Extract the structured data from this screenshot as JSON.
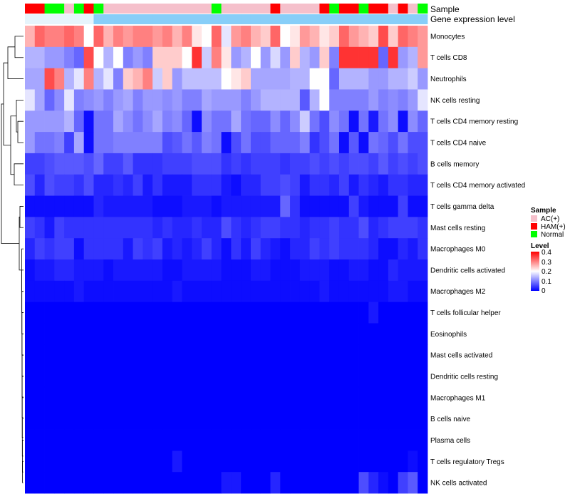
{
  "chart_data": {
    "type": "heatmap",
    "annotation_tracks": [
      {
        "label": "Sample",
        "values": [
          "HAM(+)",
          "HAM(+)",
          "Normal",
          "Normal",
          "AC(+)",
          "Normal",
          "HAM(+)",
          "Normal",
          "AC(+)",
          "AC(+)",
          "AC(+)",
          "AC(+)",
          "AC(+)",
          "AC(+)",
          "AC(+)",
          "AC(+)",
          "AC(+)",
          "AC(+)",
          "AC(+)",
          "Normal",
          "AC(+)",
          "AC(+)",
          "AC(+)",
          "AC(+)",
          "AC(+)",
          "HAM(+)",
          "AC(+)",
          "AC(+)",
          "AC(+)",
          "AC(+)",
          "HAM(+)",
          "Normal",
          "HAM(+)",
          "HAM(+)",
          "Normal",
          "HAM(+)",
          "HAM(+)",
          "AC(+)",
          "HAM(+)",
          "AC(+)",
          "Normal"
        ]
      },
      {
        "label": "Gene expression level",
        "values": [
          "low",
          "low",
          "low",
          "low",
          "low",
          "low",
          "low",
          "high",
          "high",
          "high",
          "high",
          "high",
          "high",
          "high",
          "high",
          "high",
          "high",
          "high",
          "high",
          "high",
          "high",
          "high",
          "high",
          "high",
          "high",
          "high",
          "high",
          "high",
          "high",
          "high",
          "high",
          "high",
          "high",
          "high",
          "high",
          "high",
          "high",
          "high",
          "high",
          "high",
          "high"
        ]
      }
    ],
    "rows": [
      "Monocytes",
      "T cells CD8",
      "Neutrophils",
      "NK cells resting",
      "T cells CD4 memory resting",
      "T cells CD4 naive",
      "B cells memory",
      "T cells CD4 memory activated",
      "T cells gamma delta",
      "Mast cells resting",
      "Macrophages M0",
      "Dendritic cells activated",
      "Macrophages M2",
      "T cells follicular helper",
      "Eosinophils",
      "Mast cells activated",
      "Dendritic cells resting",
      "Macrophages M1",
      "B cells naive",
      "Plasma cells",
      "T cells regulatory  Tregs",
      "NK cells activated"
    ],
    "values": [
      [
        0.26,
        0.32,
        0.3,
        0.3,
        0.32,
        0.3,
        0.2,
        0.32,
        0.26,
        0.3,
        0.28,
        0.3,
        0.3,
        0.28,
        0.3,
        0.26,
        0.3,
        0.22,
        0.2,
        0.32,
        0.18,
        0.28,
        0.3,
        0.26,
        0.24,
        0.32,
        0.2,
        0.22,
        0.28,
        0.26,
        0.22,
        0.24,
        0.32,
        0.28,
        0.26,
        0.24,
        0.34,
        0.24,
        0.32,
        0.3,
        0.28
      ],
      [
        0.14,
        0.14,
        0.12,
        0.12,
        0.1,
        0.08,
        0.34,
        0.2,
        0.14,
        0.2,
        0.1,
        0.12,
        0.1,
        0.24,
        0.24,
        0.24,
        0.2,
        0.36,
        0.16,
        0.3,
        0.22,
        0.12,
        0.14,
        0.2,
        0.12,
        0.17,
        0.12,
        0.24,
        0.14,
        0.12,
        0.24,
        0.1,
        0.36,
        0.36,
        0.36,
        0.36,
        0.08,
        0.36,
        0.12,
        0.14,
        0.28
      ],
      [
        0.13,
        0.13,
        0.34,
        0.3,
        0.14,
        0.18,
        0.3,
        0.14,
        0.18,
        0.1,
        0.24,
        0.26,
        0.3,
        0.16,
        0.24,
        0.12,
        0.15,
        0.15,
        0.15,
        0.15,
        0.2,
        0.22,
        0.24,
        0.13,
        0.13,
        0.13,
        0.13,
        0.14,
        0.14,
        0.2,
        0.2,
        0.08,
        0.14,
        0.14,
        0.14,
        0.12,
        0.12,
        0.14,
        0.14,
        0.16,
        0.12
      ],
      [
        0.18,
        0.13,
        0.08,
        0.11,
        0.18,
        0.1,
        0.11,
        0.12,
        0.1,
        0.12,
        0.13,
        0.1,
        0.12,
        0.12,
        0.11,
        0.12,
        0.1,
        0.1,
        0.13,
        0.12,
        0.12,
        0.12,
        0.1,
        0.12,
        0.14,
        0.14,
        0.14,
        0.14,
        0.07,
        0.14,
        0.2,
        0.1,
        0.1,
        0.1,
        0.1,
        0.12,
        0.1,
        0.11,
        0.1,
        0.12,
        0.18
      ],
      [
        0.12,
        0.12,
        0.12,
        0.12,
        0.14,
        0.08,
        0.01,
        0.09,
        0.09,
        0.13,
        0.11,
        0.09,
        0.11,
        0.13,
        0.1,
        0.11,
        0.08,
        0.01,
        0.11,
        0.09,
        0.09,
        0.13,
        0.09,
        0.08,
        0.08,
        0.11,
        0.08,
        0.11,
        0.16,
        0.09,
        0.06,
        0.11,
        0.09,
        0.01,
        0.09,
        0.02,
        0.09,
        0.11,
        0.01,
        0.11,
        0.08
      ],
      [
        0.12,
        0.09,
        0.09,
        0.1,
        0.05,
        0.13,
        0.01,
        0.09,
        0.09,
        0.1,
        0.1,
        0.1,
        0.1,
        0.1,
        0.06,
        0.07,
        0.09,
        0.07,
        0.1,
        0.09,
        0.01,
        0.06,
        0.09,
        0.06,
        0.06,
        0.08,
        0.08,
        0.08,
        0.1,
        0.04,
        0.06,
        0.09,
        0.01,
        0.07,
        0.01,
        0.09,
        0.08,
        0.06,
        0.09,
        0.06,
        0.06
      ],
      [
        0.05,
        0.05,
        0.06,
        0.07,
        0.07,
        0.07,
        0.06,
        0.08,
        0.05,
        0.05,
        0.07,
        0.04,
        0.04,
        0.04,
        0.05,
        0.05,
        0.05,
        0.06,
        0.06,
        0.06,
        0.04,
        0.05,
        0.04,
        0.05,
        0.05,
        0.05,
        0.04,
        0.05,
        0.05,
        0.06,
        0.05,
        0.06,
        0.05,
        0.06,
        0.06,
        0.05,
        0.07,
        0.05,
        0.06,
        0.05,
        0.06
      ],
      [
        0.06,
        0.03,
        0.06,
        0.05,
        0.05,
        0.04,
        0.06,
        0.03,
        0.03,
        0.04,
        0.03,
        0.05,
        0.02,
        0.04,
        0.02,
        0.02,
        0.02,
        0.04,
        0.04,
        0.04,
        0.02,
        0.01,
        0.03,
        0.03,
        0.05,
        0.05,
        0.06,
        0.05,
        0.02,
        0.04,
        0.04,
        0.03,
        0.05,
        0.02,
        0.04,
        0.03,
        0.02,
        0.04,
        0.04,
        0.03,
        0.03
      ],
      [
        0.01,
        0.01,
        0.01,
        0.01,
        0.01,
        0.01,
        0.01,
        0.03,
        0.02,
        0.02,
        0.02,
        0.02,
        0.02,
        0.01,
        0.01,
        0.01,
        0.02,
        0.02,
        0.02,
        0.01,
        0.02,
        0.02,
        0.02,
        0.02,
        0.02,
        0.02,
        0.08,
        0.04,
        0.01,
        0.01,
        0.01,
        0.01,
        0.01,
        0.05,
        0.02,
        0.01,
        0.01,
        0.01,
        0.05,
        0.01,
        0.01
      ],
      [
        0.05,
        0.04,
        0.02,
        0.05,
        0.04,
        0.04,
        0.04,
        0.04,
        0.04,
        0.04,
        0.04,
        0.04,
        0.04,
        0.03,
        0.04,
        0.03,
        0.03,
        0.04,
        0.03,
        0.03,
        0.06,
        0.04,
        0.03,
        0.04,
        0.05,
        0.05,
        0.04,
        0.04,
        0.03,
        0.04,
        0.04,
        0.05,
        0.04,
        0.04,
        0.06,
        0.03,
        0.04,
        0.05,
        0.05,
        0.05,
        0.04
      ],
      [
        0.03,
        0.05,
        0.04,
        0.05,
        0.05,
        0.01,
        0.04,
        0.04,
        0.04,
        0.04,
        0.02,
        0.05,
        0.04,
        0.05,
        0.02,
        0.03,
        0.02,
        0.03,
        0.05,
        0.03,
        0.01,
        0.04,
        0.02,
        0.05,
        0.03,
        0.02,
        0.01,
        0.03,
        0.03,
        0.05,
        0.04,
        0.05,
        0.04,
        0.04,
        0.04,
        0.03,
        0.01,
        0.01,
        0.03,
        0.02,
        0.04
      ],
      [
        0.01,
        0.02,
        0.02,
        0.03,
        0.03,
        0.02,
        0.02,
        0.02,
        0.01,
        0.02,
        0.02,
        0.02,
        0.02,
        0.02,
        0.01,
        0.01,
        0.02,
        0.02,
        0.02,
        0.02,
        0.01,
        0.01,
        0.01,
        0.02,
        0.02,
        0.01,
        0.01,
        0.01,
        0.02,
        0.02,
        0.02,
        0.01,
        0.01,
        0.02,
        0.02,
        0.01,
        0.01,
        0.03,
        0.02,
        0.02,
        0.02
      ],
      [
        0.01,
        0.01,
        0.01,
        0.01,
        0.01,
        0.02,
        0.01,
        0.01,
        0.01,
        0.01,
        0.01,
        0.01,
        0.01,
        0.01,
        0.01,
        0.02,
        0.01,
        0.01,
        0.01,
        0.01,
        0.01,
        0.01,
        0.01,
        0.01,
        0.01,
        0.01,
        0.01,
        0.01,
        0.01,
        0.01,
        0.02,
        0.01,
        0.01,
        0.01,
        0.01,
        0.01,
        0.01,
        0.02,
        0.02,
        0.01,
        0.01
      ],
      [
        0,
        0,
        0,
        0,
        0,
        0,
        0,
        0,
        0,
        0,
        0,
        0,
        0,
        0,
        0,
        0,
        0,
        0,
        0,
        0,
        0,
        0,
        0,
        0,
        0,
        0,
        0,
        0,
        0,
        0,
        0,
        0,
        0,
        0,
        0,
        0.02,
        0,
        0,
        0,
        0,
        0
      ],
      [
        0,
        0,
        0,
        0,
        0,
        0,
        0,
        0,
        0,
        0,
        0,
        0,
        0,
        0,
        0,
        0,
        0,
        0,
        0,
        0,
        0,
        0,
        0,
        0,
        0,
        0,
        0,
        0,
        0,
        0,
        0,
        0,
        0,
        0,
        0,
        0,
        0,
        0,
        0,
        0,
        0
      ],
      [
        0,
        0,
        0,
        0,
        0,
        0,
        0,
        0,
        0,
        0,
        0,
        0,
        0,
        0,
        0,
        0,
        0,
        0,
        0,
        0,
        0,
        0,
        0,
        0,
        0,
        0,
        0,
        0,
        0,
        0,
        0,
        0,
        0,
        0,
        0,
        0,
        0,
        0,
        0,
        0,
        0
      ],
      [
        0,
        0,
        0,
        0,
        0,
        0,
        0,
        0,
        0,
        0,
        0,
        0,
        0,
        0,
        0,
        0,
        0,
        0,
        0,
        0,
        0,
        0,
        0,
        0,
        0,
        0,
        0,
        0,
        0,
        0,
        0,
        0,
        0,
        0,
        0,
        0,
        0,
        0,
        0,
        0,
        0
      ],
      [
        0,
        0,
        0,
        0,
        0,
        0,
        0,
        0,
        0,
        0,
        0,
        0,
        0,
        0,
        0,
        0,
        0,
        0,
        0,
        0,
        0,
        0,
        0,
        0,
        0,
        0,
        0,
        0,
        0,
        0,
        0,
        0,
        0,
        0,
        0,
        0,
        0,
        0,
        0,
        0,
        0
      ],
      [
        0,
        0,
        0,
        0,
        0,
        0,
        0,
        0,
        0,
        0,
        0,
        0,
        0,
        0,
        0,
        0,
        0,
        0,
        0,
        0,
        0,
        0,
        0,
        0,
        0,
        0,
        0,
        0,
        0,
        0,
        0,
        0,
        0,
        0,
        0,
        0,
        0,
        0,
        0,
        0,
        0
      ],
      [
        0,
        0,
        0,
        0,
        0,
        0,
        0,
        0,
        0,
        0,
        0,
        0,
        0,
        0,
        0,
        0,
        0,
        0,
        0,
        0,
        0,
        0,
        0,
        0,
        0,
        0,
        0,
        0,
        0,
        0,
        0,
        0,
        0,
        0,
        0,
        0,
        0,
        0,
        0,
        0,
        0
      ],
      [
        0,
        0,
        0,
        0,
        0,
        0,
        0,
        0,
        0,
        0,
        0,
        0,
        0,
        0,
        0,
        0.02,
        0,
        0,
        0,
        0,
        0,
        0,
        0,
        0,
        0,
        0,
        0,
        0,
        0,
        0,
        0,
        0,
        0,
        0,
        0,
        0,
        0,
        0,
        0,
        0.01,
        0
      ],
      [
        0,
        0,
        0,
        0,
        0,
        0,
        0,
        0,
        0,
        0,
        0,
        0,
        0,
        0,
        0,
        0,
        0,
        0,
        0,
        0,
        0.02,
        0.02,
        0,
        0,
        0,
        0.03,
        0,
        0,
        0,
        0,
        0,
        0,
        0,
        0,
        0.06,
        0.03,
        0.01,
        0,
        0.05,
        0.07,
        0
      ]
    ],
    "legend": {
      "sample": {
        "title": "Sample",
        "items": [
          {
            "label": "AC(+)",
            "color": "#f5c0cb"
          },
          {
            "label": "HAM(+)",
            "color": "#ff0000"
          },
          {
            "label": "Normal",
            "color": "#00ff00"
          }
        ]
      },
      "level": {
        "title": "Level",
        "ticks": [
          "0.4",
          "0.3",
          "0.2",
          "0.1",
          "0"
        ],
        "range": [
          0,
          0.4
        ]
      }
    },
    "gene_expression_colors": {
      "low": "#e6f4fb",
      "high": "#87cef8"
    },
    "colorscale": {
      "low": "#0000ff",
      "mid": "#ffffff",
      "high": "#ff0000",
      "mid_value": 0.2
    },
    "row_dendrogram": true
  }
}
